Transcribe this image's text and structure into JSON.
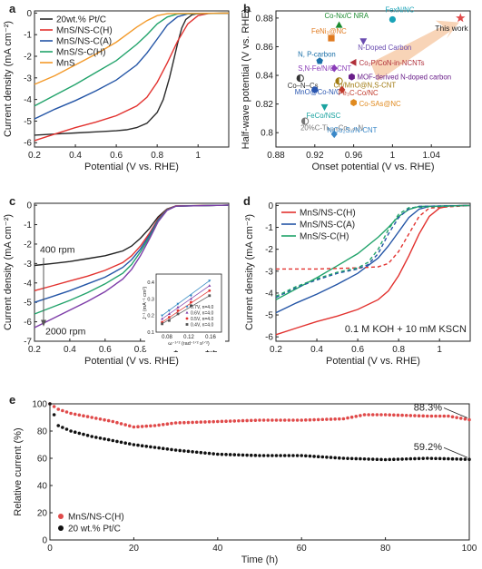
{
  "figure": {
    "panels": [
      "a",
      "b",
      "c",
      "d",
      "e"
    ]
  },
  "chart_data": [
    {
      "panel": "a",
      "type": "line",
      "xlabel": "Potential (V vs. RHE)",
      "ylabel": "Current density (mA cm⁻²)",
      "xlim": [
        0.2,
        1.15
      ],
      "ylim": [
        -6.2,
        0.1
      ],
      "xticks": [
        0.2,
        0.4,
        0.6,
        0.8,
        1.0
      ],
      "yticks": [
        0,
        -1,
        -2,
        -3,
        -4,
        -5,
        -6
      ],
      "legend_position": "top-left",
      "series": [
        {
          "name": "20wt.% Pt/C",
          "color": "#2b2b2b",
          "dash": false,
          "x": [
            0.2,
            0.3,
            0.4,
            0.5,
            0.6,
            0.65,
            0.7,
            0.75,
            0.8,
            0.83,
            0.86,
            0.88,
            0.9,
            0.92,
            0.94,
            0.97,
            1.0,
            1.15
          ],
          "y": [
            -5.65,
            -5.6,
            -5.55,
            -5.5,
            -5.45,
            -5.4,
            -5.3,
            -5.1,
            -4.6,
            -4.0,
            -3.0,
            -2.2,
            -1.4,
            -0.7,
            -0.3,
            -0.08,
            -0.02,
            0
          ]
        },
        {
          "name": "MnS/NS-C(H)",
          "color": "#e2322f",
          "dash": false,
          "x": [
            0.2,
            0.3,
            0.4,
            0.5,
            0.6,
            0.7,
            0.75,
            0.8,
            0.85,
            0.9,
            0.95,
            1.0,
            1.05,
            1.15
          ],
          "y": [
            -5.9,
            -5.6,
            -5.3,
            -5.05,
            -4.75,
            -4.3,
            -3.9,
            -3.2,
            -2.3,
            -1.3,
            -0.5,
            -0.12,
            -0.02,
            0
          ]
        },
        {
          "name": "MnS/NS-C(A)",
          "color": "#2455a6",
          "dash": false,
          "x": [
            0.2,
            0.3,
            0.4,
            0.5,
            0.6,
            0.7,
            0.75,
            0.8,
            0.85,
            0.9,
            0.95,
            1.15
          ],
          "y": [
            -4.9,
            -4.45,
            -4.05,
            -3.6,
            -3.1,
            -2.4,
            -1.85,
            -1.2,
            -0.55,
            -0.17,
            -0.04,
            0
          ]
        },
        {
          "name": "MnS/S-C(H)",
          "color": "#22a36b",
          "dash": false,
          "x": [
            0.2,
            0.3,
            0.4,
            0.5,
            0.6,
            0.7,
            0.75,
            0.8,
            0.85,
            0.9,
            1.15
          ],
          "y": [
            -4.3,
            -3.8,
            -3.3,
            -2.75,
            -2.2,
            -1.45,
            -1.0,
            -0.5,
            -0.18,
            -0.04,
            0
          ]
        },
        {
          "name": "MnS",
          "color": "#f39a2a",
          "dash": false,
          "x": [
            0.2,
            0.3,
            0.4,
            0.5,
            0.6,
            0.65,
            0.7,
            0.75,
            0.8,
            0.85,
            1.15
          ],
          "y": [
            -3.3,
            -2.9,
            -2.4,
            -1.9,
            -1.35,
            -1.0,
            -0.65,
            -0.35,
            -0.12,
            -0.03,
            0
          ]
        }
      ]
    },
    {
      "panel": "b",
      "type": "scatter",
      "xlabel": "Onset potential (V vs. RHE)",
      "ylabel": "Half-wave potential (V vs. RHE)",
      "xlim": [
        0.88,
        1.08
      ],
      "ylim": [
        0.79,
        0.885
      ],
      "xticks": [
        0.88,
        0.92,
        0.96,
        1.0,
        1.04
      ],
      "yticks": [
        0.8,
        0.82,
        0.84,
        0.86,
        0.88
      ],
      "points": [
        {
          "label": "Co-Nx/C NRA",
          "x": 0.945,
          "y": 0.875,
          "color": "#1a8a2e",
          "symbol": "triangle-up"
        },
        {
          "label": "FexN/NC",
          "x": 1.0,
          "y": 0.879,
          "color": "#1aa3b8",
          "symbol": "circle"
        },
        {
          "label": "FeNi₃@NC",
          "x": 0.937,
          "y": 0.866,
          "color": "#e07a1f",
          "symbol": "square"
        },
        {
          "label": "N-Doped Carbon",
          "x": 0.97,
          "y": 0.864,
          "color": "#6a4cb0",
          "symbol": "triangle-down"
        },
        {
          "label": "N, P-carbon",
          "x": 0.925,
          "y": 0.85,
          "color": "#1a6fa8",
          "symbol": "pentagon"
        },
        {
          "label": "Co₂P/CoN-in-NCNTs",
          "x": 0.96,
          "y": 0.849,
          "color": "#b02f3a",
          "symbol": "triangle-left"
        },
        {
          "label": "S,N-Fe/N/C-CNT",
          "x": 0.94,
          "y": 0.845,
          "color": "#8a3cb8",
          "symbol": "diamond"
        },
        {
          "label": "MOF-derived N-doped carbon",
          "x": 0.958,
          "y": 0.839,
          "color": "#6a1f8a",
          "symbol": "hexagon"
        },
        {
          "label": "Co–N–Cs",
          "x": 0.905,
          "y": 0.838,
          "color": "#333333",
          "symbol": "half-circle"
        },
        {
          "label": "Co/MnO@N,S-CNT",
          "x": 0.945,
          "y": 0.836,
          "color": "#a07a10",
          "symbol": "half-circle"
        },
        {
          "label": "MnO@Co-N/C",
          "x": 0.92,
          "y": 0.83,
          "color": "#2a56b0",
          "symbol": "circle"
        },
        {
          "label": "Fe₃C-Co/NC",
          "x": 0.948,
          "y": 0.83,
          "color": "#c0392b",
          "symbol": "diamond"
        },
        {
          "label": "Co-SAs@NC",
          "x": 0.96,
          "y": 0.821,
          "color": "#e08a1f",
          "symbol": "hexagon"
        },
        {
          "label": "FeCo/NSC",
          "x": 0.93,
          "y": 0.818,
          "color": "#1aa3a0",
          "symbol": "triangle-down"
        },
        {
          "label": "20%C-Ti₀.₉₅Co₀.₀₅N",
          "x": 0.91,
          "y": 0.808,
          "color": "#777777",
          "symbol": "half-circle"
        },
        {
          "label": "NiCo₂S₄/N-CNT",
          "x": 0.94,
          "y": 0.799,
          "color": "#3a88c8",
          "symbol": "diamond"
        },
        {
          "label": "This work",
          "x": 1.07,
          "y": 0.88,
          "color": "#e04a4a",
          "symbol": "star"
        }
      ]
    },
    {
      "panel": "c",
      "type": "line",
      "xlabel": "Potential (V vs. RHE)",
      "ylabel": "Current density (mA cm⁻²)",
      "xlim": [
        0.2,
        1.3
      ],
      "ylim": [
        -7,
        0.1
      ],
      "xticks": [
        0.2,
        0.4,
        0.6,
        0.8,
        1.0,
        1.2
      ],
      "yticks": [
        0,
        -1,
        -2,
        -3,
        -4,
        -5,
        -6,
        -7
      ],
      "annotations": [
        "400 rpm",
        "2000 rpm"
      ],
      "series": [
        {
          "name": "400 rpm",
          "color": "#222222",
          "x": [
            0.2,
            0.3,
            0.4,
            0.5,
            0.6,
            0.7,
            0.75,
            0.8,
            0.85,
            0.9,
            0.95,
            1.0,
            1.3
          ],
          "y": [
            -3.1,
            -3.0,
            -2.9,
            -2.75,
            -2.6,
            -2.35,
            -2.1,
            -1.7,
            -1.2,
            -0.6,
            -0.2,
            -0.04,
            0
          ]
        },
        {
          "name": "",
          "color": "#e2322f",
          "x": [
            0.2,
            0.3,
            0.4,
            0.5,
            0.6,
            0.7,
            0.75,
            0.8,
            0.85,
            0.9,
            0.95,
            1.0,
            1.3
          ],
          "y": [
            -4.4,
            -4.15,
            -3.9,
            -3.65,
            -3.35,
            -2.95,
            -2.6,
            -2.1,
            -1.45,
            -0.7,
            -0.22,
            -0.04,
            0
          ]
        },
        {
          "name": "",
          "color": "#2455a6",
          "x": [
            0.2,
            0.3,
            0.4,
            0.5,
            0.6,
            0.7,
            0.75,
            0.8,
            0.85,
            0.9,
            0.95,
            1.0,
            1.3
          ],
          "y": [
            -5.0,
            -4.7,
            -4.4,
            -4.05,
            -3.7,
            -3.2,
            -2.8,
            -2.25,
            -1.55,
            -0.75,
            -0.24,
            -0.05,
            0
          ]
        },
        {
          "name": "",
          "color": "#22a36b",
          "x": [
            0.2,
            0.3,
            0.4,
            0.5,
            0.6,
            0.7,
            0.75,
            0.8,
            0.85,
            0.9,
            0.95,
            1.0,
            1.3
          ],
          "y": [
            -5.6,
            -5.25,
            -4.9,
            -4.5,
            -4.05,
            -3.5,
            -3.05,
            -2.4,
            -1.65,
            -0.8,
            -0.25,
            -0.05,
            0
          ]
        },
        {
          "name": "2000 rpm",
          "color": "#7d3ca8",
          "x": [
            0.2,
            0.3,
            0.4,
            0.5,
            0.6,
            0.7,
            0.75,
            0.8,
            0.85,
            0.9,
            0.95,
            1.0,
            1.3
          ],
          "y": [
            -6.3,
            -5.85,
            -5.4,
            -4.95,
            -4.45,
            -3.8,
            -3.3,
            -2.6,
            -1.75,
            -0.85,
            -0.27,
            -0.05,
            0
          ]
        }
      ],
      "inset": {
        "type": "scatter",
        "xlabel": "ω⁻¹ᐟ² (rad⁻¹ᐟ² s¹ᐟ²)",
        "ylabel": "J⁻¹ (mA⁻¹ cm²)",
        "xlim": [
          0.06,
          0.18
        ],
        "ylim": [
          0.1,
          0.45
        ],
        "xticks": [
          0.08,
          0.12,
          0.16
        ],
        "yticks": [
          0.1,
          0.2,
          0.3,
          0.4
        ],
        "legend": [
          {
            "name": "0.7V, n=4.0",
            "color": "#2e86c1",
            "marker": "triangle-down"
          },
          {
            "name": "0.6V, n=4.0",
            "color": "#7d3ca8",
            "marker": "triangle-up"
          },
          {
            "name": "0.5V, n=4.0",
            "color": "#e2322f",
            "marker": "circle"
          },
          {
            "name": "0.4V, n=4.0",
            "color": "#555555",
            "marker": "square"
          }
        ],
        "series": [
          {
            "color": "#2e86c1",
            "x": [
              0.071,
              0.084,
              0.1,
              0.124,
              0.158
            ],
            "y": [
              0.2,
              0.23,
              0.27,
              0.32,
              0.41
            ]
          },
          {
            "color": "#7d3ca8",
            "x": [
              0.071,
              0.084,
              0.1,
              0.124,
              0.158
            ],
            "y": [
              0.18,
              0.21,
              0.25,
              0.3,
              0.38
            ]
          },
          {
            "color": "#e2322f",
            "x": [
              0.071,
              0.084,
              0.1,
              0.124,
              0.158
            ],
            "y": [
              0.16,
              0.19,
              0.23,
              0.28,
              0.35
            ]
          },
          {
            "color": "#555555",
            "x": [
              0.071,
              0.084,
              0.1,
              0.124,
              0.158
            ],
            "y": [
              0.15,
              0.17,
              0.21,
              0.26,
              0.32
            ]
          }
        ]
      }
    },
    {
      "panel": "d",
      "type": "line",
      "xlabel": "Potential (V vs. RHE)",
      "ylabel": "Current density (mA cm⁻²)",
      "xlim": [
        0.2,
        1.15
      ],
      "ylim": [
        -6.2,
        0.1
      ],
      "xticks": [
        0.2,
        0.4,
        0.6,
        0.8,
        1.0
      ],
      "yticks": [
        0,
        -1,
        -2,
        -3,
        -4,
        -5,
        -6
      ],
      "annotation": "0.1 M KOH + 10 mM KSCN",
      "legend_position": "top-left",
      "series": [
        {
          "name": "MnS/NS-C(H)",
          "color": "#e2322f",
          "dash": false,
          "x": [
            0.2,
            0.3,
            0.4,
            0.5,
            0.6,
            0.7,
            0.75,
            0.8,
            0.85,
            0.9,
            0.95,
            1.0,
            1.05,
            1.15
          ],
          "y": [
            -5.9,
            -5.6,
            -5.3,
            -5.05,
            -4.75,
            -4.3,
            -3.9,
            -3.2,
            -2.3,
            -1.3,
            -0.5,
            -0.12,
            -0.02,
            0
          ]
        },
        {
          "name": "MnS/NS-C(A)",
          "color": "#2455a6",
          "dash": false,
          "x": [
            0.2,
            0.3,
            0.4,
            0.5,
            0.6,
            0.7,
            0.75,
            0.8,
            0.85,
            0.9,
            0.95,
            1.15
          ],
          "y": [
            -4.9,
            -4.45,
            -4.05,
            -3.6,
            -3.1,
            -2.4,
            -1.85,
            -1.2,
            -0.55,
            -0.17,
            -0.04,
            0
          ]
        },
        {
          "name": "MnS/S-C(H)",
          "color": "#22a36b",
          "dash": false,
          "x": [
            0.2,
            0.3,
            0.4,
            0.5,
            0.6,
            0.7,
            0.75,
            0.8,
            0.85,
            0.9,
            1.15
          ],
          "y": [
            -4.3,
            -3.8,
            -3.3,
            -2.75,
            -2.2,
            -1.45,
            -1.0,
            -0.5,
            -0.18,
            -0.04,
            0
          ]
        },
        {
          "name": "",
          "color": "#e2322f",
          "dash": true,
          "x": [
            0.2,
            0.4,
            0.6,
            0.7,
            0.75,
            0.8,
            0.85,
            0.9,
            0.95,
            1.15
          ],
          "y": [
            -2.9,
            -2.9,
            -2.85,
            -2.8,
            -2.65,
            -2.1,
            -1.3,
            -0.5,
            -0.12,
            0
          ]
        },
        {
          "name": "",
          "color": "#2455a6",
          "dash": true,
          "x": [
            0.2,
            0.3,
            0.4,
            0.5,
            0.6,
            0.65,
            0.7,
            0.75,
            0.8,
            0.85,
            0.9,
            1.15
          ],
          "y": [
            -4.2,
            -3.75,
            -3.4,
            -3.1,
            -2.9,
            -2.7,
            -2.2,
            -1.3,
            -0.55,
            -0.15,
            -0.04,
            0
          ]
        },
        {
          "name": "",
          "color": "#22a36b",
          "dash": true,
          "x": [
            0.2,
            0.3,
            0.4,
            0.5,
            0.6,
            0.65,
            0.7,
            0.75,
            0.8,
            0.85,
            1.15
          ],
          "y": [
            -4.15,
            -3.7,
            -3.35,
            -3.05,
            -2.85,
            -2.6,
            -2.0,
            -1.1,
            -0.4,
            -0.1,
            0
          ]
        }
      ]
    },
    {
      "panel": "e",
      "type": "scatter",
      "xlabel": "Time (h)",
      "ylabel": "Relative current (%)",
      "xlim": [
        0,
        100
      ],
      "ylim": [
        0,
        100
      ],
      "xticks": [
        0,
        20,
        40,
        60,
        80,
        100
      ],
      "yticks": [
        0,
        20,
        40,
        60,
        80,
        100
      ],
      "legend_position": "bottom-left",
      "annotations": [
        {
          "text": "88.3%",
          "x": 100,
          "y": 88.3
        },
        {
          "text": "59.2%",
          "x": 100,
          "y": 59.2
        }
      ],
      "series": [
        {
          "name": "MnS/NS-C(H)",
          "color": "#e04a4a",
          "x": [
            0,
            2,
            5,
            10,
            15,
            20,
            25,
            30,
            40,
            50,
            60,
            70,
            75,
            80,
            90,
            95,
            100
          ],
          "y": [
            100,
            96,
            93,
            90,
            87,
            83,
            84,
            86,
            87,
            88,
            88,
            89,
            92,
            92,
            91,
            91,
            88.3
          ]
        },
        {
          "name": "20 wt.% Pt/C",
          "color": "#111111",
          "x": [
            0,
            2,
            5,
            10,
            15,
            20,
            25,
            30,
            40,
            50,
            60,
            70,
            80,
            90,
            100
          ],
          "y": [
            100,
            84,
            80,
            76,
            73,
            70,
            68,
            66,
            63,
            62,
            62,
            60,
            59,
            60,
            59.2
          ]
        }
      ]
    }
  ]
}
